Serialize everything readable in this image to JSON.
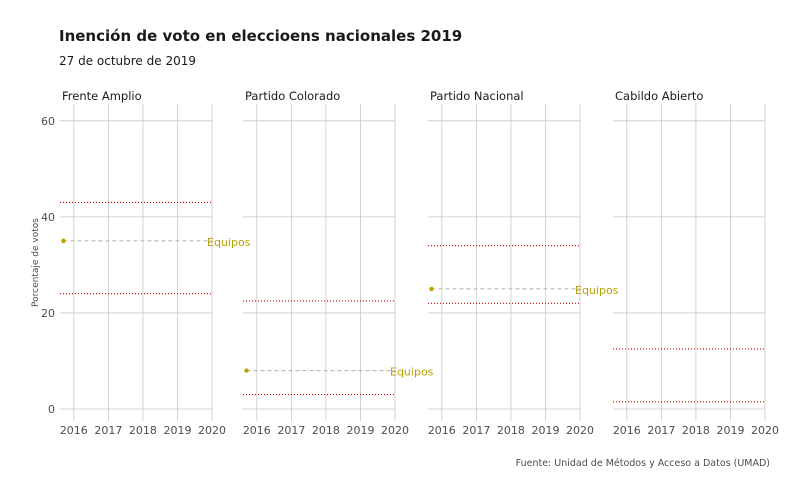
{
  "chart_data": {
    "type": "scatter",
    "title": "Inención de voto en eleccioens nacionales 2019",
    "subtitle": "27 de octubre de 2019",
    "caption": "Fuente: Unidad de Métodos y Acceso a Datos (UMAD)",
    "ylabel": "Porcentaje de votos",
    "xlabel": "",
    "xlim": [
      2015.6,
      2020.0
    ],
    "ylim": [
      -2.5,
      63.5
    ],
    "x_ticks": [
      2016,
      2017,
      2018,
      2019,
      2020
    ],
    "y_ticks": [
      0,
      20,
      40,
      60
    ],
    "grid": true,
    "colors": {
      "point": "#b8a100",
      "label": "#b8a100",
      "range_line": "#cc0000",
      "dashed_line": "#b0b0b0",
      "grid": "#c8c8c8"
    },
    "panels": [
      {
        "name": "Frente Amplio",
        "point": {
          "x": 2015.7,
          "y": 35.0
        },
        "label": "Equipos",
        "range": [
          24.0,
          43.0
        ]
      },
      {
        "name": "Partido Colorado",
        "point": {
          "x": 2015.7,
          "y": 8.0
        },
        "label": "Equipos",
        "range": [
          3.0,
          22.5
        ]
      },
      {
        "name": "Partido Nacional",
        "point": {
          "x": 2015.7,
          "y": 25.0
        },
        "label": "Equipos",
        "range": [
          22.0,
          34.0
        ]
      },
      {
        "name": "Cabildo Abierto",
        "point": null,
        "label": "",
        "range": [
          1.5,
          12.5
        ]
      }
    ]
  }
}
